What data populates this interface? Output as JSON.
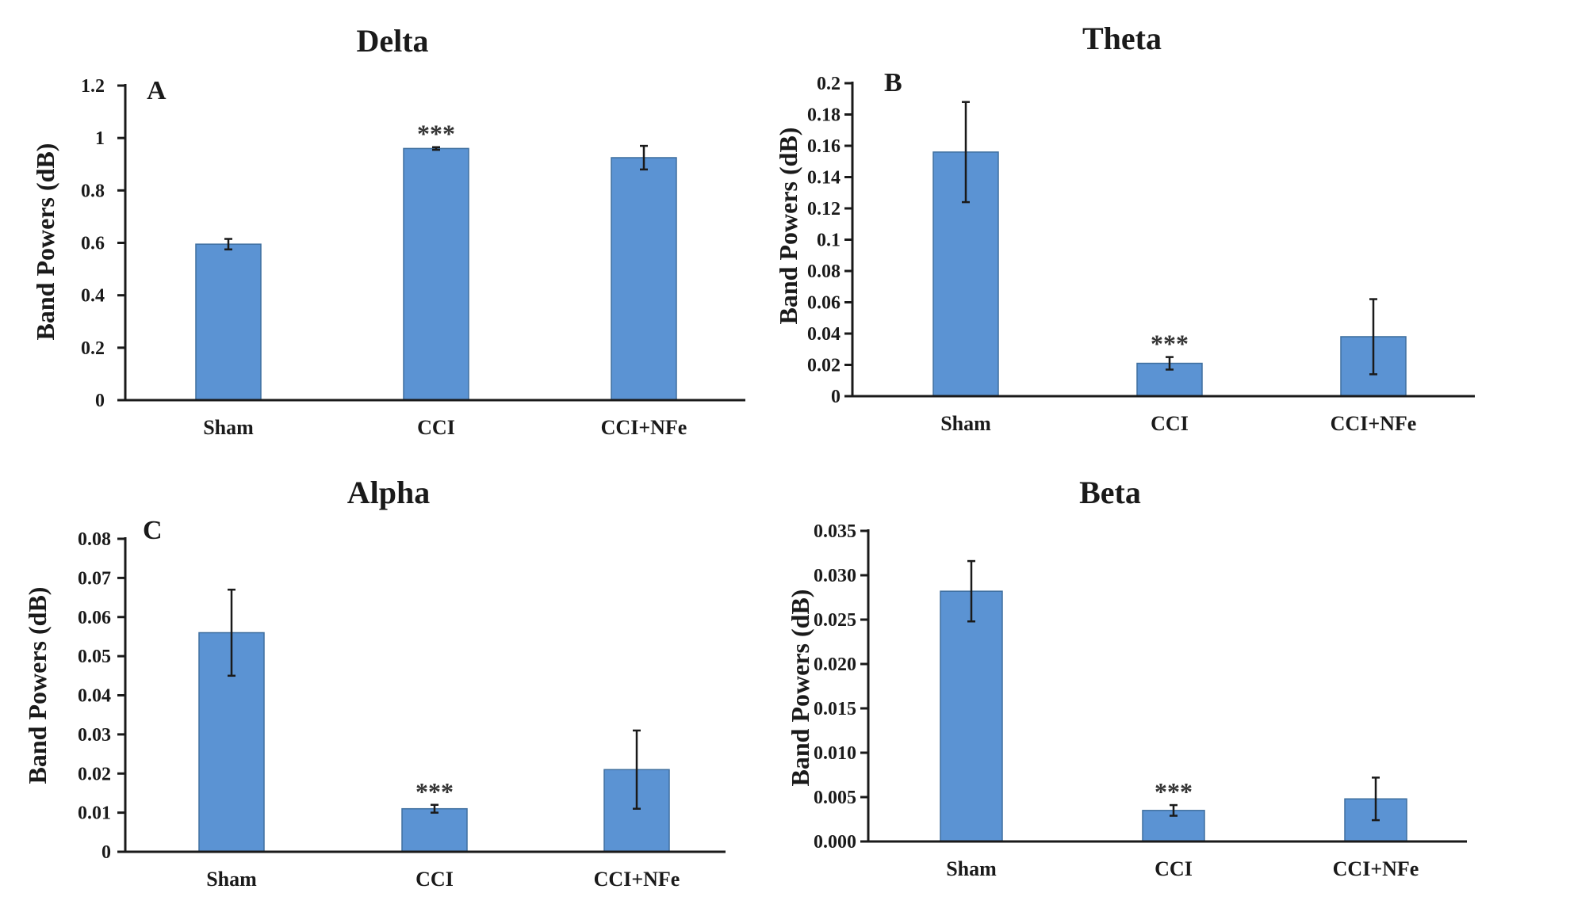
{
  "chart_data": [
    {
      "type": "bar",
      "title": "Delta",
      "panel_letter": "A",
      "ylabel": "Band Powers (dB)",
      "categories": [
        "Sham",
        "CCI",
        "CCI+NFe"
      ],
      "values": [
        0.595,
        0.96,
        0.925
      ],
      "errors": [
        0.02,
        0.005,
        0.045
      ],
      "significance": [
        "",
        "***",
        ""
      ],
      "ylim": [
        0,
        1.2
      ],
      "yticks": [
        "0",
        "0.2",
        "0.4",
        "0.6",
        "0.8",
        "1",
        "1.2"
      ],
      "bar_color": "#5b93d3"
    },
    {
      "type": "bar",
      "title": "Theta",
      "panel_letter": "B",
      "ylabel": "Band Powers (dB)",
      "categories": [
        "Sham",
        "CCI",
        "CCI+NFe"
      ],
      "values": [
        0.156,
        0.021,
        0.038
      ],
      "errors": [
        0.032,
        0.004,
        0.024
      ],
      "significance": [
        "",
        "***",
        ""
      ],
      "ylim": [
        0,
        0.2
      ],
      "yticks": [
        "0",
        "0.02",
        "0.04",
        "0.06",
        "0.08",
        "0.1",
        "0.12",
        "0.14",
        "0.16",
        "0.18",
        "0.2"
      ],
      "bar_color": "#5b93d3"
    },
    {
      "type": "bar",
      "title": "Alpha",
      "panel_letter": "C",
      "ylabel": "Band Powers (dB)",
      "categories": [
        "Sham",
        "CCI",
        "CCI+NFe"
      ],
      "values": [
        0.056,
        0.011,
        0.021
      ],
      "errors": [
        0.011,
        0.001,
        0.01
      ],
      "significance": [
        "",
        "***",
        ""
      ],
      "ylim": [
        0,
        0.08
      ],
      "yticks": [
        "0",
        "0.01",
        "0.02",
        "0.03",
        "0.04",
        "0.05",
        "0.06",
        "0.07",
        "0.08"
      ],
      "bar_color": "#5b93d3"
    },
    {
      "type": "bar",
      "title": "Beta",
      "panel_letter": "",
      "ylabel": "Band Powers (dB)",
      "categories": [
        "Sham",
        "CCI",
        "CCI+NFe"
      ],
      "values": [
        0.0282,
        0.0035,
        0.0048
      ],
      "errors": [
        0.0034,
        0.0006,
        0.0024
      ],
      "significance": [
        "",
        "***",
        ""
      ],
      "ylim": [
        0,
        0.035
      ],
      "yticks": [
        "0.000",
        "0.005",
        "0.010",
        "0.015",
        "0.020",
        "0.025",
        "0.030",
        "0.035"
      ],
      "bar_color": "#5b93d3"
    }
  ]
}
